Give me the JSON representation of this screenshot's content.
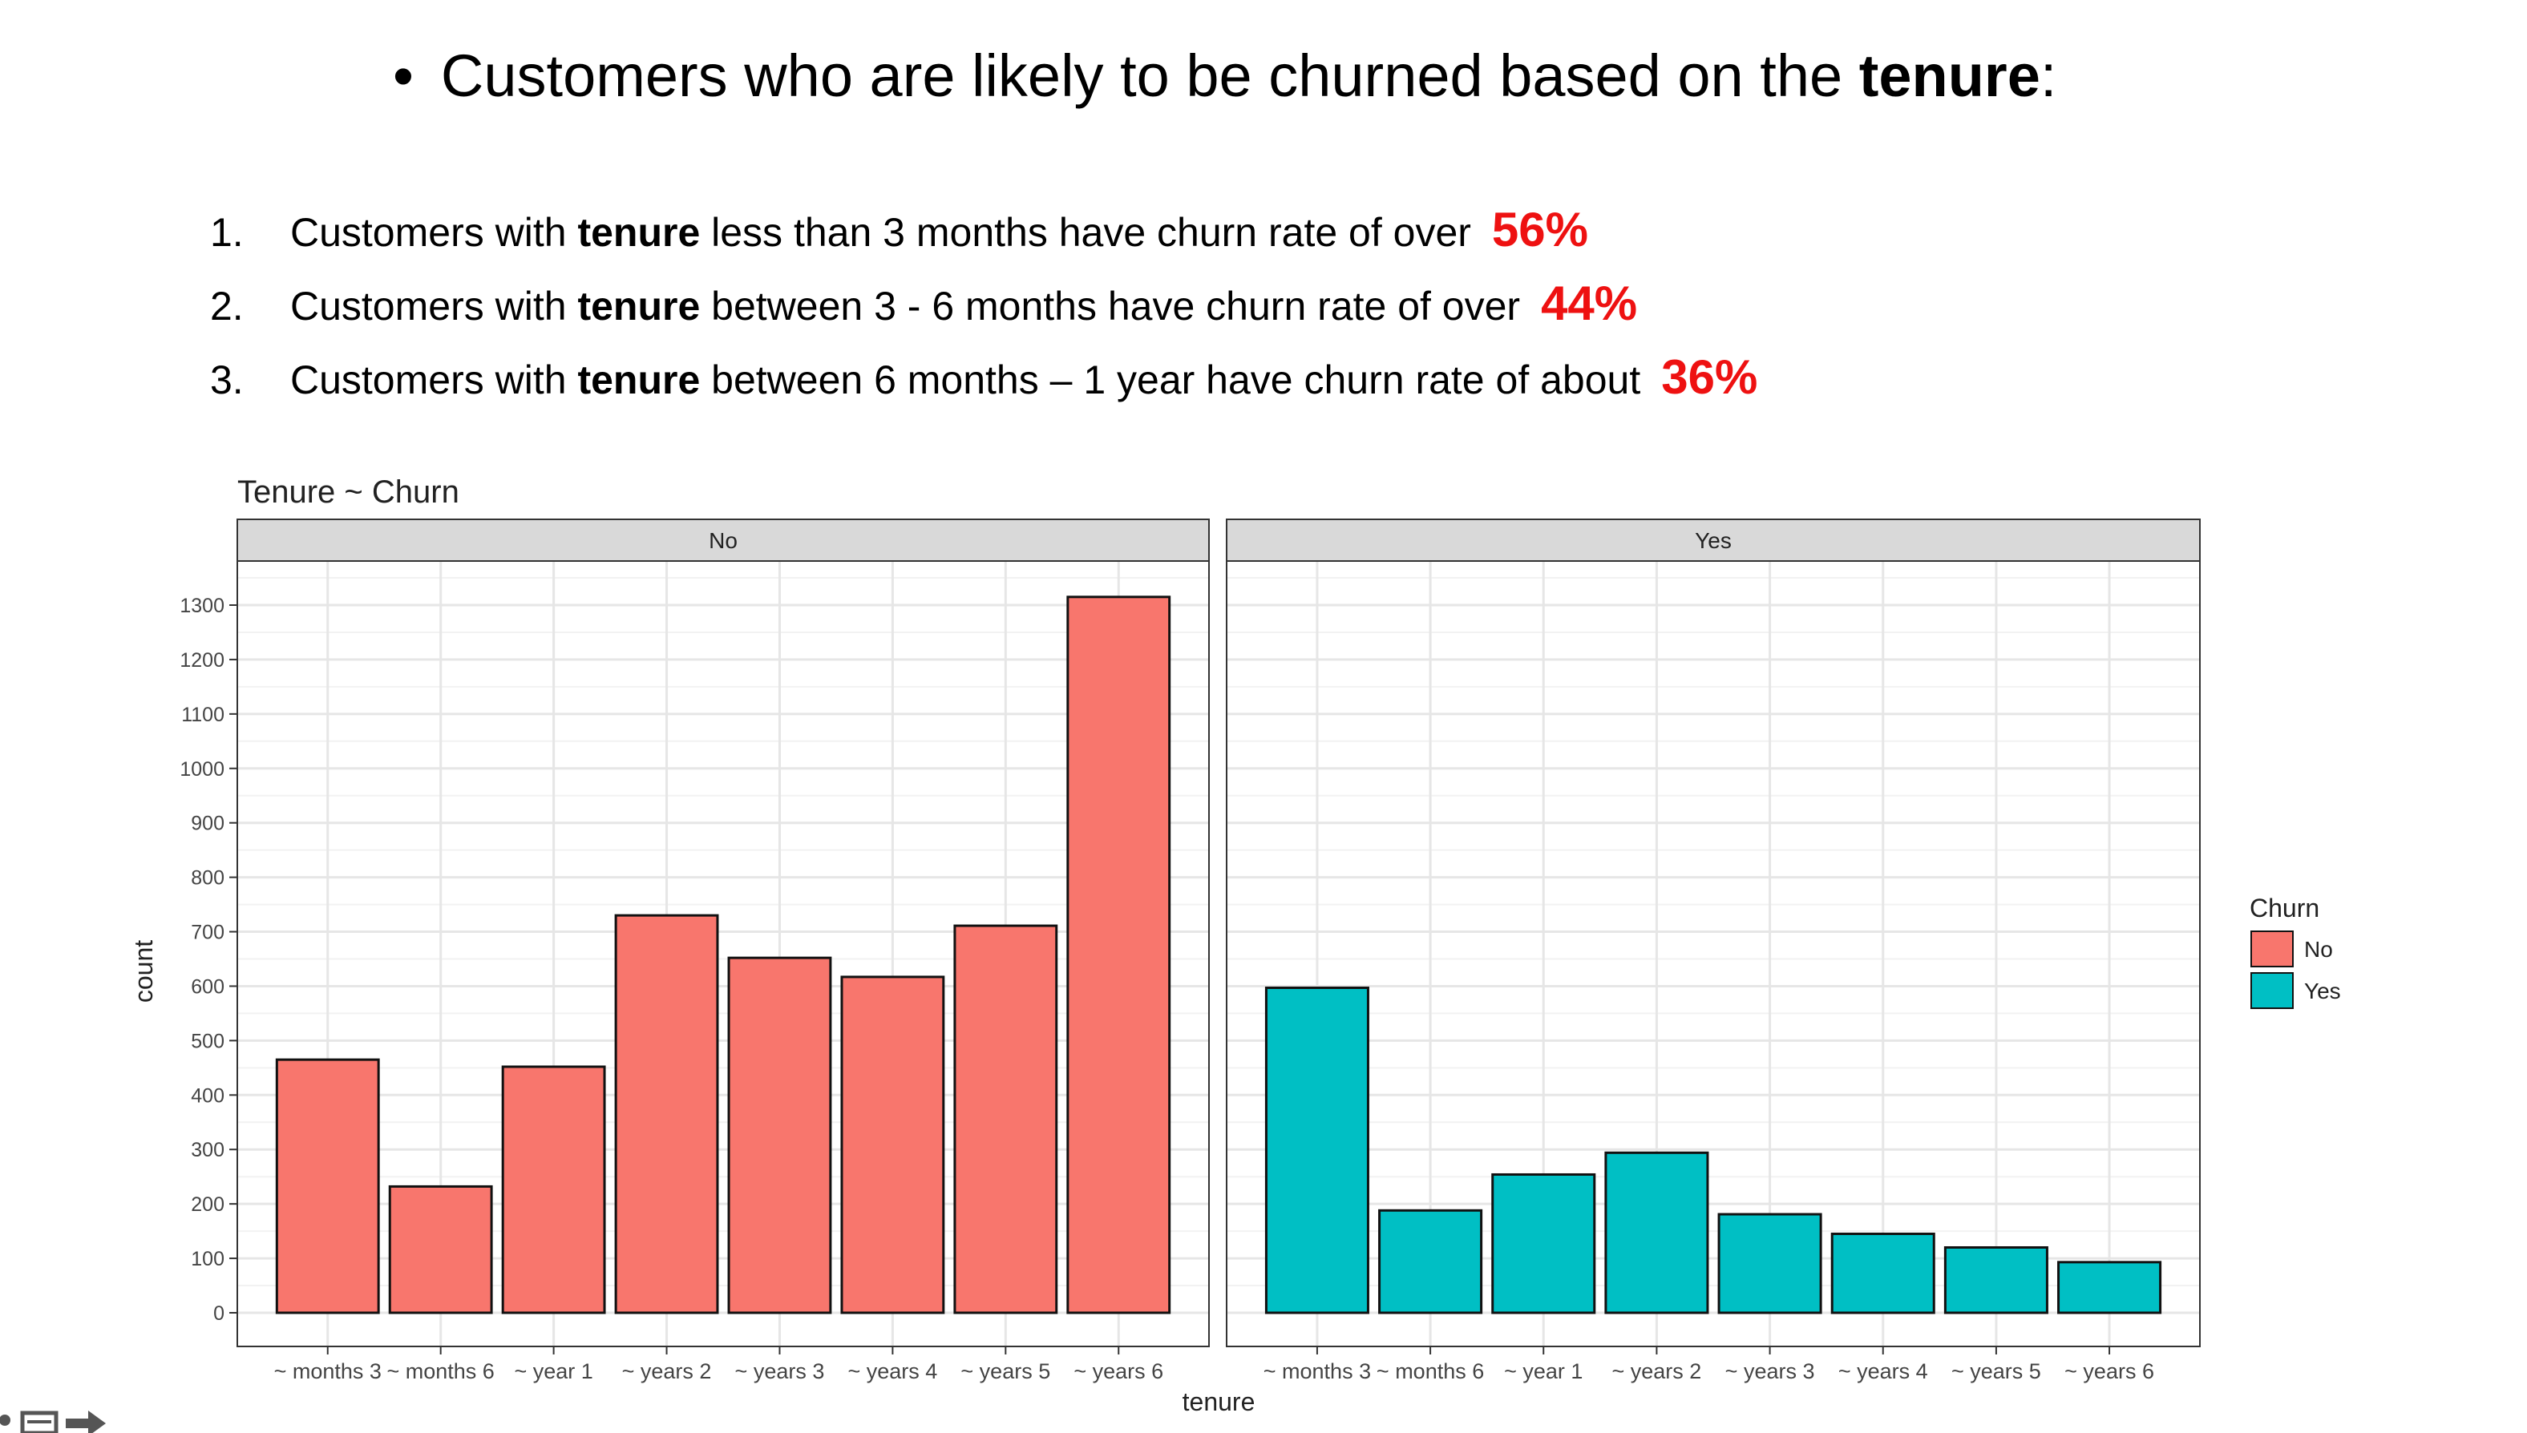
{
  "slide": {
    "bullet": "•",
    "heading_pre": "Customers who are likely to be churned based on the ",
    "heading_bold": "tenure",
    "heading_post": ":",
    "points": [
      {
        "num": "1.",
        "pre": "Customers with ",
        "bold": "tenure",
        "post": " less than 3 months have churn rate of over",
        "pct": "56%"
      },
      {
        "num": "2.",
        "pre": "Customers with ",
        "bold": "tenure",
        "post": " between 3 - 6 months have churn rate of over",
        "pct": "44%"
      },
      {
        "num": "3.",
        "pre": "Customers with ",
        "bold": "tenure",
        "post": " between 6 months – 1 year have churn rate of about",
        "pct": "36%"
      }
    ]
  },
  "chart_data": {
    "type": "bar",
    "title": "Tenure ~ Churn",
    "xlabel": "tenure",
    "ylabel": "count",
    "ylim": [
      0,
      1370
    ],
    "yticks": [
      0,
      100,
      200,
      300,
      400,
      500,
      600,
      700,
      800,
      900,
      1000,
      1100,
      1200,
      1300
    ],
    "categories": [
      "~ months 3",
      "~ months 6",
      "~ year 1",
      "~ years 2",
      "~ years 3",
      "~ years 4",
      "~ years 5",
      "~ years 6"
    ],
    "facets": [
      {
        "label": "No",
        "color": "#F8766D",
        "values": [
          465,
          232,
          452,
          730,
          652,
          617,
          711,
          1315
        ]
      },
      {
        "label": "Yes",
        "color": "#00BFC4",
        "values": [
          597,
          188,
          254,
          294,
          181,
          145,
          120,
          93
        ]
      }
    ],
    "legend": {
      "title": "Churn",
      "position": "right",
      "items": [
        {
          "label": "No",
          "color": "#F8766D"
        },
        {
          "label": "Yes",
          "color": "#00BFC4"
        }
      ]
    },
    "grid": true
  }
}
